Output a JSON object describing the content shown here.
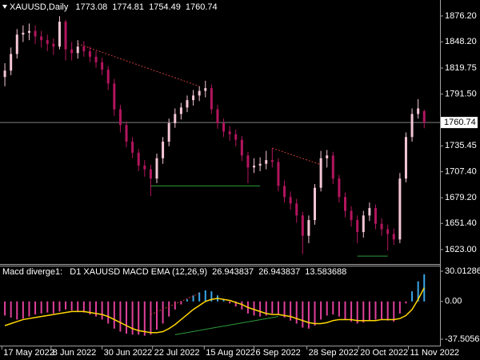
{
  "chart_data": [
    {
      "type": "candlestick",
      "title": "XAUUSD,Daily",
      "bull_color": "#f4c6d6",
      "bear_color": "#b3155e",
      "price_line_color": "#808080",
      "open": [
        1810,
        1817,
        1835,
        1856,
        1858,
        1860,
        1854,
        1850,
        1846,
        1843,
        1870,
        1840,
        1836,
        1843,
        1838,
        1832,
        1826,
        1818,
        1803,
        1775,
        1758,
        1740,
        1728,
        1714,
        1710,
        1700,
        1722,
        1740,
        1760,
        1770,
        1777,
        1785,
        1790,
        1795,
        1798,
        1775,
        1760,
        1751,
        1748,
        1742,
        1725,
        1712,
        1714,
        1716,
        1720,
        1718,
        1692,
        1680,
        1673,
        1660,
        1638,
        1655,
        1690,
        1722,
        1725,
        1700,
        1680,
        1665,
        1655,
        1642,
        1660,
        1668,
        1651,
        1645,
        1640,
        1634,
        1700,
        1745,
        1770,
        1773.08
      ],
      "high": [
        1825,
        1842,
        1862,
        1866,
        1868,
        1866,
        1860,
        1856,
        1852,
        1876,
        1872,
        1848,
        1850,
        1849,
        1843,
        1838,
        1831,
        1822,
        1808,
        1780,
        1762,
        1745,
        1732,
        1720,
        1715,
        1727,
        1745,
        1765,
        1776,
        1782,
        1790,
        1796,
        1800,
        1806,
        1802,
        1780,
        1765,
        1757,
        1753,
        1746,
        1729,
        1722,
        1723,
        1730,
        1733,
        1722,
        1698,
        1686,
        1678,
        1664,
        1660,
        1694,
        1730,
        1731,
        1729,
        1704,
        1685,
        1670,
        1660,
        1665,
        1674,
        1672,
        1657,
        1650,
        1646,
        1706,
        1750,
        1776,
        1786,
        1774.81
      ],
      "low": [
        1800,
        1812,
        1830,
        1848,
        1850,
        1846,
        1842,
        1838,
        1834,
        1840,
        1828,
        1828,
        1830,
        1832,
        1826,
        1820,
        1812,
        1796,
        1768,
        1750,
        1734,
        1722,
        1708,
        1702,
        1681,
        1695,
        1716,
        1735,
        1755,
        1764,
        1772,
        1779,
        1784,
        1788,
        1770,
        1754,
        1745,
        1741,
        1735,
        1719,
        1695,
        1706,
        1708,
        1710,
        1712,
        1686,
        1674,
        1666,
        1652,
        1618,
        1630,
        1650,
        1686,
        1712,
        1694,
        1674,
        1658,
        1648,
        1630,
        1636,
        1654,
        1645,
        1638,
        1622,
        1628,
        1630,
        1696,
        1740,
        1765,
        1754.49
      ],
      "close": [
        1817,
        1835,
        1856,
        1858,
        1860,
        1854,
        1850,
        1846,
        1843,
        1870,
        1840,
        1836,
        1843,
        1838,
        1832,
        1826,
        1818,
        1803,
        1775,
        1758,
        1740,
        1728,
        1714,
        1710,
        1700,
        1722,
        1740,
        1760,
        1770,
        1777,
        1785,
        1790,
        1795,
        1798,
        1775,
        1760,
        1751,
        1748,
        1742,
        1725,
        1712,
        1714,
        1716,
        1720,
        1718,
        1692,
        1680,
        1673,
        1660,
        1638,
        1655,
        1690,
        1722,
        1725,
        1700,
        1680,
        1665,
        1655,
        1642,
        1660,
        1668,
        1651,
        1645,
        1640,
        1634,
        1700,
        1745,
        1770,
        1776,
        1760.74
      ],
      "xlim": [
        -0.8,
        71.6
      ],
      "ylim": [
        1607.4,
        1893.5
      ],
      "yticks": [
        {
          "value": 1876.2,
          "label": "1876.20"
        },
        {
          "value": 1848.2,
          "label": "1848.20"
        },
        1819.75,
        {
          "value": 1791.5,
          "label": "1791.50"
        },
        1735.45,
        {
          "value": 1707.4,
          "label": "1707.40"
        },
        {
          "value": 1679.2,
          "label": "1679.20"
        },
        {
          "value": 1651.4,
          "label": "1651.40"
        },
        {
          "value": 1623,
          "label": "1623.00"
        }
      ],
      "divergence_lines": [
        {
          "x": [
            12,
            32
          ],
          "y": [
            1846,
            1800
          ],
          "color": "#c83c3c",
          "style": "dotted"
        },
        {
          "x": [
            44,
            52
          ],
          "y": [
            1733,
            1715
          ],
          "color": "#c83c3c",
          "style": "dotted"
        },
        {
          "x": [
            24,
            42
          ],
          "y": [
            1692,
            1692
          ],
          "color": "#2e9b3a",
          "style": "solid"
        },
        {
          "x": [
            58,
            63
          ],
          "y": [
            1616,
            1616
          ],
          "color": "#2e9b3a",
          "style": "solid"
        }
      ]
    },
    {
      "type": "macd",
      "title": "Macd diverge1:",
      "subtitle": "D1 XAUUSD MACD EMA (12,26,9)",
      "xlim": [
        -0.8,
        71.6
      ],
      "xticks": [
        {
          "value": -0.5,
          "label": "17 May 2022"
        },
        {
          "value": 7.6,
          "label": "8 Jun 2022"
        },
        {
          "value": 16,
          "label": "30 Jun 2022"
        },
        {
          "value": 24.3,
          "label": "22 Jul 2022"
        },
        {
          "value": 32.8,
          "label": "15 Aug 2022"
        },
        {
          "value": 41,
          "label": "6 Sep 2022"
        },
        {
          "value": 49.7,
          "label": "28 Sep 2022"
        },
        {
          "value": 58.2,
          "label": "20 Oct 2022"
        },
        {
          "value": 66.4,
          "label": "11 Nov 2022"
        }
      ],
      "ylim": [
        -43.86,
        35.57
      ],
      "yticks": [
        30.012862,
        {
          "value": 0,
          "label": "0.00"
        },
        -37.505672
      ],
      "histogram": {
        "positive_color": "#3aa6e8",
        "negative_color": "#e0409a",
        "values": [
          -14,
          -16,
          -18,
          -17,
          -15,
          -13,
          -12,
          -11,
          -12,
          -10,
          -8,
          -9,
          -10,
          -11,
          -13,
          -15,
          -18,
          -22,
          -27,
          -30,
          -32,
          -33,
          -33,
          -34,
          -33,
          -28,
          -22,
          -15,
          -8,
          -3,
          2,
          6,
          9,
          11,
          10,
          6,
          2,
          -2,
          -5,
          -8,
          -12,
          -14,
          -15,
          -14,
          -12,
          -13,
          -16,
          -19,
          -22,
          -26,
          -27,
          -24,
          -18,
          -14,
          -13,
          -15,
          -18,
          -20,
          -22,
          -21,
          -19,
          -18,
          -18,
          -19,
          -20,
          -12,
          -2,
          10,
          20,
          26.943837
        ]
      },
      "signal": {
        "color": "#ffd700",
        "values": [
          -24,
          -22,
          -20,
          -18,
          -17,
          -16,
          -15,
          -14,
          -13,
          -12,
          -11,
          -10,
          -10,
          -10,
          -11,
          -12,
          -13,
          -15,
          -18,
          -21,
          -24,
          -27,
          -29,
          -30,
          -31,
          -31,
          -30,
          -27,
          -23,
          -18,
          -13,
          -8,
          -4,
          0,
          2,
          3,
          2,
          1,
          -1,
          -3,
          -6,
          -8,
          -10,
          -12,
          -13,
          -13,
          -14,
          -15,
          -17,
          -19,
          -21,
          -22,
          -22,
          -21,
          -19,
          -18,
          -18,
          -18,
          -19,
          -19,
          -19,
          -19,
          -18,
          -18,
          -18,
          -17,
          -14,
          -8,
          2,
          13.583688
        ]
      },
      "divergence_lines": [
        {
          "x": [
            24,
            32
          ],
          "y": [
            -13,
            8
          ],
          "color": "#c83c3c",
          "style": "dotted"
        },
        {
          "x": [
            28,
            45
          ],
          "y": [
            -33,
            -15
          ],
          "color": "#2e9b3a",
          "style": "solid"
        }
      ]
    }
  ]
}
